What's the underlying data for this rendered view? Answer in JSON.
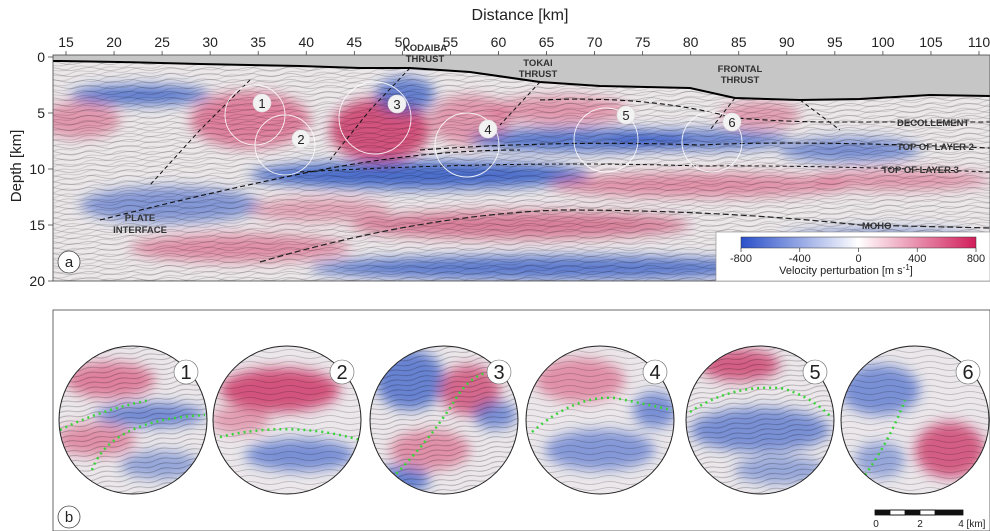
{
  "panel_a": {
    "letter": "a",
    "title": "Distance [km]",
    "ylabel": "Depth [km]",
    "x_ticks": [
      "15",
      "20",
      "25",
      "30",
      "35",
      "40",
      "45",
      "50",
      "55",
      "60",
      "65",
      "70",
      "75",
      "80",
      "85",
      "90",
      "95",
      "100",
      "105",
      "110"
    ],
    "y_ticks": [
      "0",
      "5",
      "10",
      "15",
      "20"
    ],
    "annotations": {
      "kodaiba": [
        "KODAIBA",
        "THRUST"
      ],
      "tokai": [
        "TOKAI",
        "THRUST"
      ],
      "frontal": [
        "FRONTAL",
        "THRUST"
      ],
      "decollement": "DECOLLEMENT",
      "layer2": "TOP OF LAYER 2",
      "layer3": "TOP OF LAYER 3",
      "moho": "MOHO",
      "plate": [
        "PLATE",
        "INTERFACE"
      ]
    },
    "numbers": [
      "1",
      "2",
      "3",
      "4",
      "5",
      "6"
    ],
    "colorbar": {
      "ticks": [
        "-800",
        "-400",
        "0",
        "400",
        "800"
      ],
      "label": "Velocity perturbation [m s",
      "unit_sup": "-1",
      "unit_end": "]",
      "colors": [
        "#2a4fc9",
        "#ffffff",
        "#d11e5a"
      ]
    }
  },
  "panel_b": {
    "letter": "b",
    "numbers": [
      "1",
      "2",
      "3",
      "4",
      "5",
      "6"
    ],
    "scalebar": {
      "ticks": [
        "0",
        "2",
        "4"
      ],
      "unit": "[km]"
    },
    "dotted_line_color": "#3ad33a"
  }
}
